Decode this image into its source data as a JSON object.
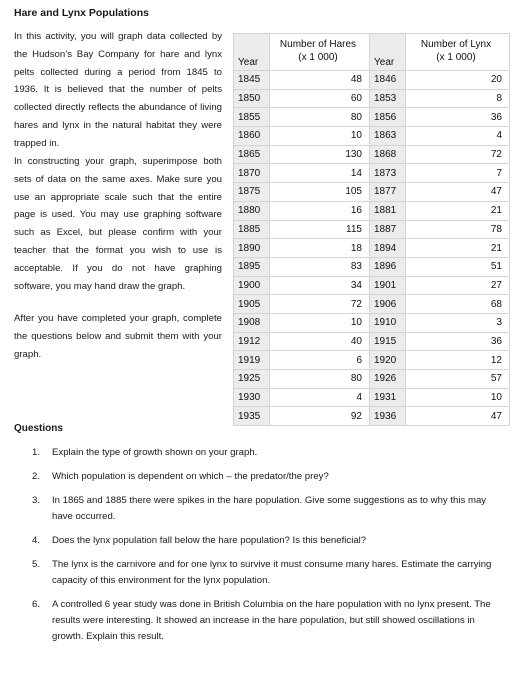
{
  "title": "Hare and Lynx Populations",
  "intro": [
    "In this activity, you will graph data collected by the Hudson’s Bay Company for hare and lynx pelts collected during a period from 1845 to 1936. It is believed that the number of pelts collected directly reflects the abundance of living hares and lynx in the natural habitat they were trapped in.",
    "In constructing your graph, superimpose both sets of data on the same axes. Make sure you use an appropriate scale such that the entire page is used. You may use graphing software such as Excel, but please confirm with your teacher that the format you wish to use is acceptable. If you do not have graphing software, you may hand draw the graph.",
    "After you have completed your graph, complete the questions below and submit them with your graph."
  ],
  "table": {
    "year_header": "Year",
    "hares_header_line1": "Number of Hares",
    "hares_header_line2": "(x 1 000)",
    "lynx_header_line1": "Number of Lynx",
    "lynx_header_line2": "(x 1 000)",
    "rows": [
      {
        "hare_year": "1845",
        "hares": "48",
        "lynx_year": "1846",
        "lynx": "20"
      },
      {
        "hare_year": "1850",
        "hares": "60",
        "lynx_year": "1853",
        "lynx": "8"
      },
      {
        "hare_year": "1855",
        "hares": "80",
        "lynx_year": "1856",
        "lynx": "36"
      },
      {
        "hare_year": "1860",
        "hares": "10",
        "lynx_year": "1863",
        "lynx": "4"
      },
      {
        "hare_year": "1865",
        "hares": "130",
        "lynx_year": "1868",
        "lynx": "72"
      },
      {
        "hare_year": "1870",
        "hares": "14",
        "lynx_year": "1873",
        "lynx": "7"
      },
      {
        "hare_year": "1875",
        "hares": "105",
        "lynx_year": "1877",
        "lynx": "47"
      },
      {
        "hare_year": "1880",
        "hares": "16",
        "lynx_year": "1881",
        "lynx": "21"
      },
      {
        "hare_year": "1885",
        "hares": "115",
        "lynx_year": "1887",
        "lynx": "78"
      },
      {
        "hare_year": "1890",
        "hares": "18",
        "lynx_year": "1894",
        "lynx": "21"
      },
      {
        "hare_year": "1895",
        "hares": "83",
        "lynx_year": "1896",
        "lynx": "51"
      },
      {
        "hare_year": "1900",
        "hares": "34",
        "lynx_year": "1901",
        "lynx": "27"
      },
      {
        "hare_year": "1905",
        "hares": "72",
        "lynx_year": "1906",
        "lynx": "68"
      },
      {
        "hare_year": "1908",
        "hares": "10",
        "lynx_year": "1910",
        "lynx": "3"
      },
      {
        "hare_year": "1912",
        "hares": "40",
        "lynx_year": "1915",
        "lynx": "36"
      },
      {
        "hare_year": "1919",
        "hares": "6",
        "lynx_year": "1920",
        "lynx": "12"
      },
      {
        "hare_year": "1925",
        "hares": "80",
        "lynx_year": "1926",
        "lynx": "57"
      },
      {
        "hare_year": "1930",
        "hares": "4",
        "lynx_year": "1931",
        "lynx": "10"
      },
      {
        "hare_year": "1935",
        "hares": "92",
        "lynx_year": "1936",
        "lynx": "47"
      }
    ]
  },
  "questions_heading": "Questions",
  "questions": [
    {
      "num": "1.",
      "text": "Explain the type of growth shown on your graph."
    },
    {
      "num": "2.",
      "text": "Which population is dependent on which – the predator/the prey?"
    },
    {
      "num": "3.",
      "text": "In 1865 and 1885 there were spikes in the hare population. Give some suggestions as to why this may have occurred."
    },
    {
      "num": "4.",
      "text": "Does the lynx population fall below the hare population? Is this beneficial?"
    },
    {
      "num": "5.",
      "text": "The lynx is the carnivore and for one lynx to survive it must consume many hares. Estimate the carrying capacity of this environment for the lynx population."
    },
    {
      "num": "6.",
      "text": "A controlled 6 year study was done in British Columbia on the hare population with no lynx present. The results were interesting. It showed an increase in the hare population, but still showed oscillations in growth. Explain this result."
    }
  ]
}
